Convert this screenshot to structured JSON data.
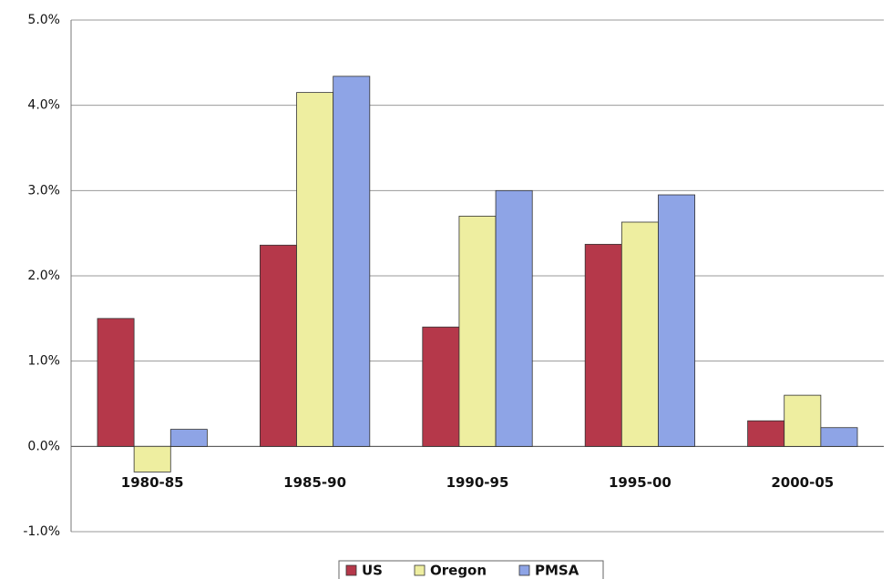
{
  "chart_data": {
    "type": "bar",
    "categories": [
      "1980-85",
      "1985-90",
      "1990-95",
      "1995-00",
      "2000-05"
    ],
    "series": [
      {
        "name": "US",
        "color": "#b5384a",
        "values": [
          1.5,
          2.36,
          1.4,
          2.37,
          0.3
        ]
      },
      {
        "name": "Oregon",
        "color": "#eeeea0",
        "values": [
          -0.3,
          4.15,
          2.7,
          2.63,
          0.6
        ]
      },
      {
        "name": "PMSA",
        "color": "#8ea4e6",
        "values": [
          0.2,
          4.34,
          3.0,
          2.95,
          0.22
        ]
      }
    ],
    "ylim": [
      -1,
      5
    ],
    "yticks": [
      {
        "value": -1,
        "label": "-1.0%"
      },
      {
        "value": 0,
        "label": "0.0%"
      },
      {
        "value": 1,
        "label": "1.0%"
      },
      {
        "value": 2,
        "label": "2.0%"
      },
      {
        "value": 3,
        "label": "3.0%"
      },
      {
        "value": 4,
        "label": "4.0%"
      },
      {
        "value": 5,
        "label": "5.0%"
      }
    ],
    "grid": true,
    "legend": "bottom"
  }
}
